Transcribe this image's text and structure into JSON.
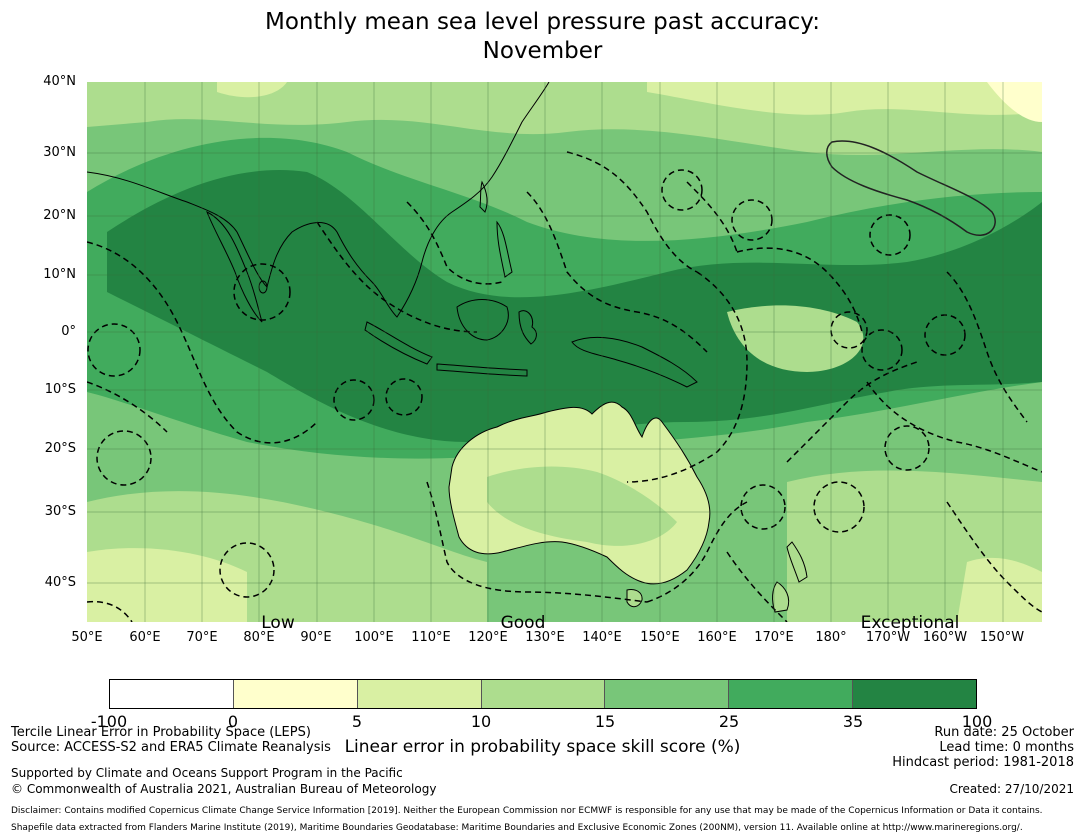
{
  "title_line1": "Monthly mean sea level pressure past accuracy:",
  "title_line2": "November",
  "lat_labels": [
    "40°N",
    "30°N",
    "20°N",
    "10°N",
    "0°",
    "10°S",
    "20°S",
    "30°S",
    "40°S"
  ],
  "lon_labels": [
    "50°E",
    "60°E",
    "70°E",
    "80°E",
    "90°E",
    "100°E",
    "110°E",
    "120°E",
    "130°E",
    "140°E",
    "150°E",
    "160°E",
    "170°E",
    "180°",
    "170°W",
    "160°W",
    "150°W"
  ],
  "categories": [
    "Low",
    "Good",
    "Exceptional"
  ],
  "colorbar": {
    "ticks": [
      "-100",
      "0",
      "5",
      "10",
      "15",
      "25",
      "35",
      "100"
    ],
    "colors": [
      "#ffffff",
      "#ffffcc",
      "#d9f0a3",
      "#addd8e",
      "#78c679",
      "#41ab5d",
      "#238443"
    ],
    "label": "Linear error in probability space skill score (%)"
  },
  "footer": {
    "line1": "Tercile Linear Error in Probability Space (LEPS)",
    "line2": "Source: ACCESS-S2 and ERA5 Climate Reanalysis",
    "support": "Supported by Climate and Oceans Support Program in the Pacific",
    "copyright": "© Commonwealth of Australia 2021, Australian Bureau of Meteorology",
    "run_date": "Run date: 25 October",
    "lead_time": "Lead time: 0 months",
    "hindcast": "Hindcast period: 1981-2018",
    "created": "Created: 27/10/2021",
    "disclaimer": "Disclaimer: Contains modified Copernicus Climate Change Service Information [2019]. Neither the European Commission nor ECMWF is responsible for any use that may be made of the Copernicus Information or Data it contains.",
    "shapefile": "Shapefile data extracted from Flanders Marine Institute (2019), Maritime Boundaries Geodatabase: Maritime Boundaries and Exclusive Economic Zones (200NM), version 11. Available online at http://www.marineregions.org/."
  }
}
